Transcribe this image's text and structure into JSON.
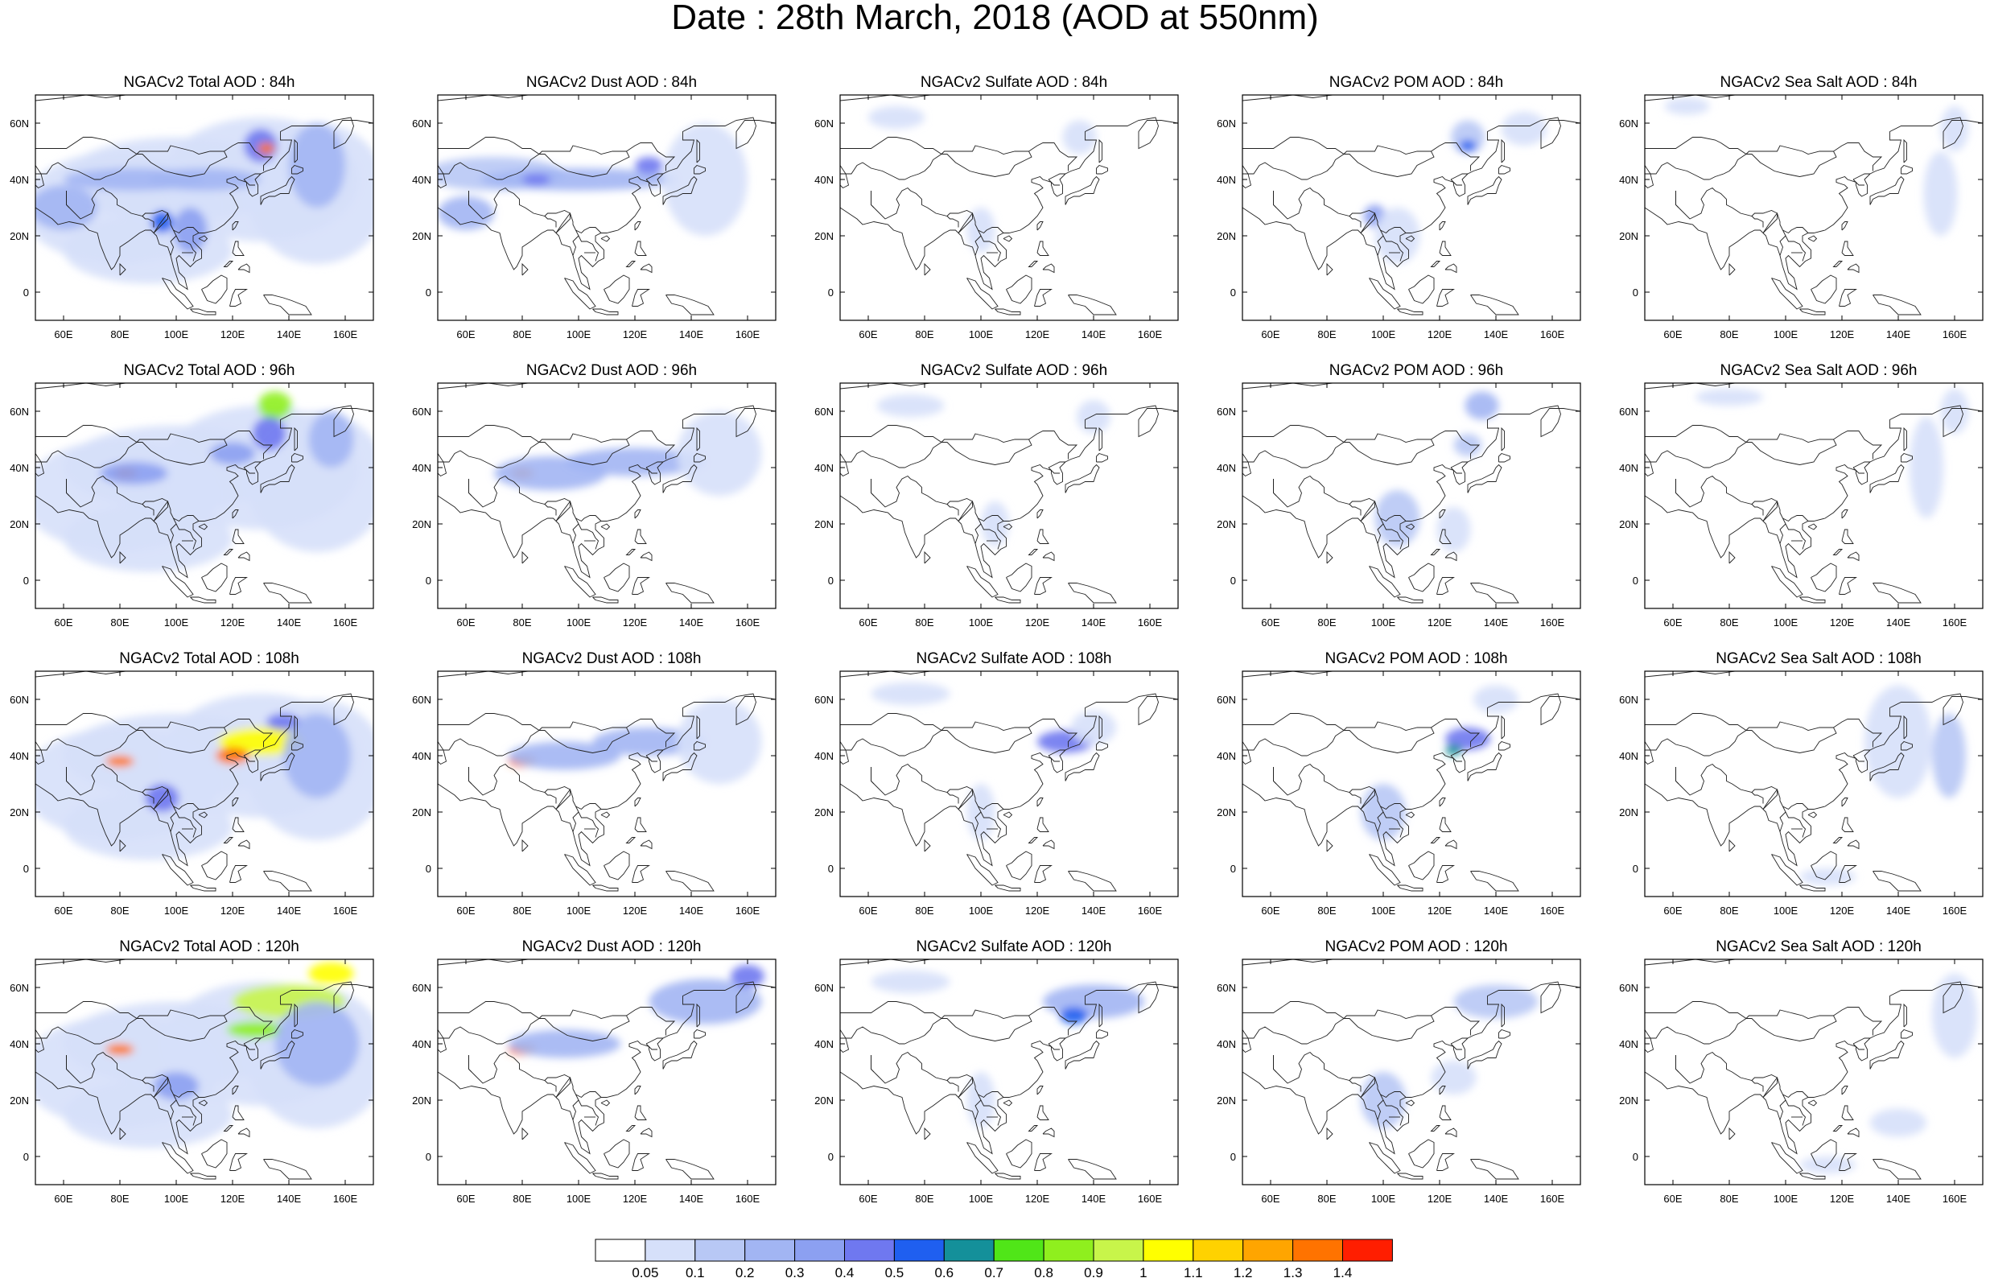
{
  "title": "Date : 28th March, 2018 (AOD at 550nm)",
  "panels": [
    [
      "NGACv2 Total AOD : 84h",
      "NGACv2 Dust AOD : 84h",
      "NGACv2 Sulfate AOD : 84h",
      "NGACv2 POM AOD : 84h",
      "NGACv2 Sea Salt AOD : 84h"
    ],
    [
      "NGACv2 Total AOD : 96h",
      "NGACv2 Dust AOD : 96h",
      "NGACv2 Sulfate AOD : 96h",
      "NGACv2 POM AOD : 96h",
      "NGACv2 Sea Salt AOD : 96h"
    ],
    [
      "NGACv2 Total AOD : 108h",
      "NGACv2 Dust AOD : 108h",
      "NGACv2 Sulfate AOD : 108h",
      "NGACv2 POM AOD : 108h",
      "NGACv2 Sea Salt AOD : 108h"
    ],
    [
      "NGACv2 Total AOD : 120h",
      "NGACv2 Dust AOD : 120h",
      "NGACv2 Sulfate AOD : 120h",
      "NGACv2 POM AOD : 120h",
      "NGACv2 Sea Salt  AOD : 120h"
    ]
  ],
  "axes": {
    "lon_ticks": [
      "60E",
      "80E",
      "100E",
      "120E",
      "140E",
      "160E"
    ],
    "lat_ticks": [
      "60N",
      "40N",
      "20N",
      "0"
    ]
  },
  "colorbar": {
    "labels": [
      "0.05",
      "0.1",
      "0.2",
      "0.3",
      "0.4",
      "0.5",
      "0.6",
      "0.7",
      "0.8",
      "0.9",
      "1",
      "1.1",
      "1.2",
      "1.3",
      "1.4"
    ],
    "colors": [
      "#ffffff",
      "#d6e0fa",
      "#b8c8f5",
      "#a2b5f3",
      "#8ca0f1",
      "#6f78f0",
      "#1f5ff0",
      "#14909a",
      "#50e618",
      "#8fef1e",
      "#c8f54a",
      "#ffff00",
      "#ffd200",
      "#ffa500",
      "#ff7300",
      "#ff1e00"
    ]
  }
}
